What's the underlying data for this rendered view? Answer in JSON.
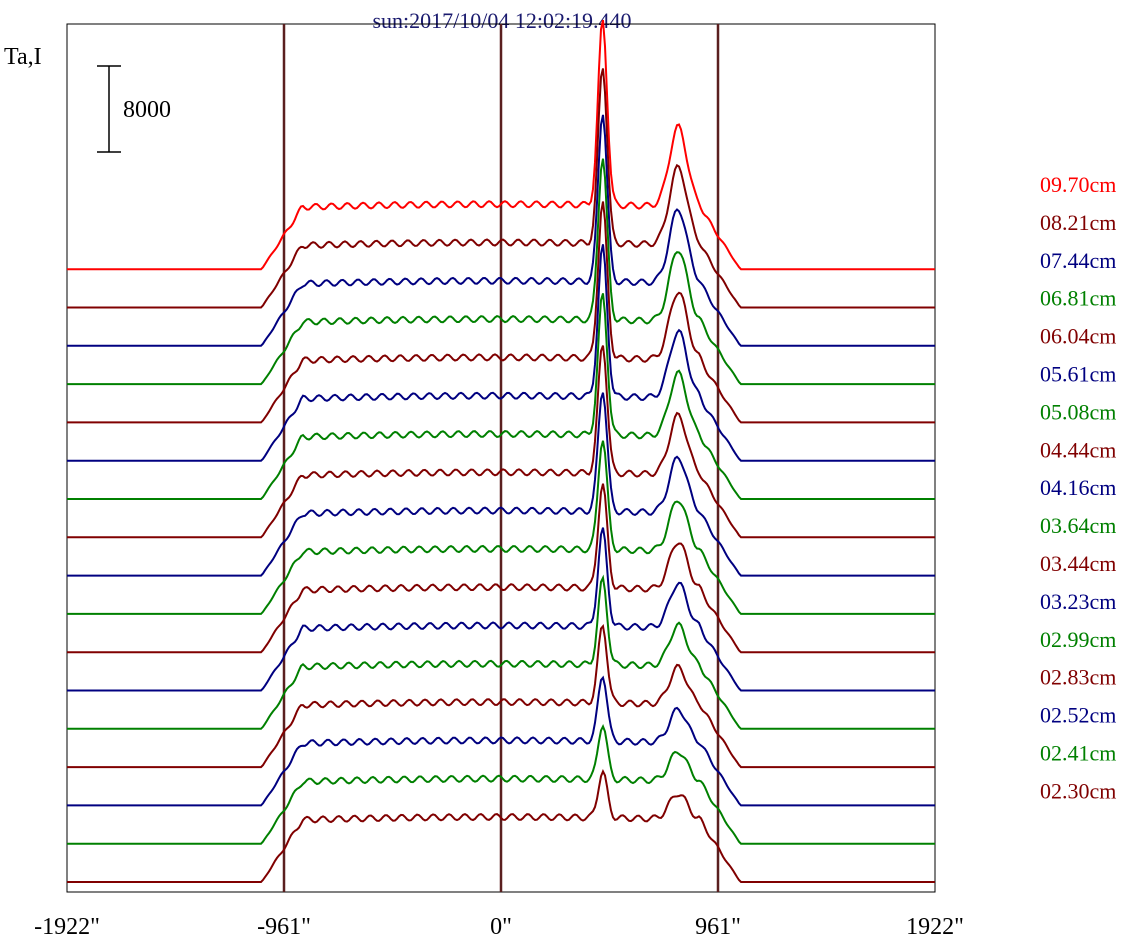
{
  "chart_data": {
    "type": "line",
    "title": "sun:2017/10/04 12:02:19.440",
    "ylabel": "Ta,I",
    "scale_bar_label": "8000",
    "x_ticks": [
      {
        "value": -1922,
        "label": "-1922\""
      },
      {
        "value": -961,
        "label": "-961\""
      },
      {
        "value": 0,
        "label": "0\""
      },
      {
        "value": 961,
        "label": "961\""
      },
      {
        "value": 1922,
        "label": "1922\""
      }
    ],
    "xlim": [
      -1922,
      1922
    ],
    "vertical_lines": [
      -961,
      0,
      961
    ],
    "grid": false,
    "legend_position": "right",
    "series": [
      {
        "name": "09.70cm",
        "color": "#ff0000",
        "peak": 1.0,
        "hump": 0.43
      },
      {
        "name": "08.21cm",
        "color": "#800000",
        "peak": 0.96,
        "hump": 0.42
      },
      {
        "name": "07.44cm",
        "color": "#000080",
        "peak": 0.92,
        "hump": 0.4
      },
      {
        "name": "06.81cm",
        "color": "#008000",
        "peak": 0.88,
        "hump": 0.39
      },
      {
        "name": "06.04cm",
        "color": "#800000",
        "peak": 0.84,
        "hump": 0.37
      },
      {
        "name": "05.61cm",
        "color": "#000080",
        "peak": 0.81,
        "hump": 0.36
      },
      {
        "name": "05.08cm",
        "color": "#008000",
        "peak": 0.76,
        "hump": 0.34
      },
      {
        "name": "04.44cm",
        "color": "#800000",
        "peak": 0.7,
        "hump": 0.32
      },
      {
        "name": "04.16cm",
        "color": "#000080",
        "peak": 0.66,
        "hump": 0.3
      },
      {
        "name": "03.64cm",
        "color": "#008000",
        "peak": 0.6,
        "hump": 0.28
      },
      {
        "name": "03.44cm",
        "color": "#800000",
        "peak": 0.56,
        "hump": 0.26
      },
      {
        "name": "03.23cm",
        "color": "#000080",
        "peak": 0.52,
        "hump": 0.24
      },
      {
        "name": "02.99cm",
        "color": "#008000",
        "peak": 0.46,
        "hump": 0.22
      },
      {
        "name": "02.83cm",
        "color": "#800000",
        "peak": 0.42,
        "hump": 0.2
      },
      {
        "name": "02.52cm",
        "color": "#000080",
        "peak": 0.36,
        "hump": 0.18
      },
      {
        "name": "02.41cm",
        "color": "#008000",
        "peak": 0.3,
        "hump": 0.16
      },
      {
        "name": "02.30cm",
        "color": "#800000",
        "peak": 0.25,
        "hump": 0.14
      }
    ]
  }
}
